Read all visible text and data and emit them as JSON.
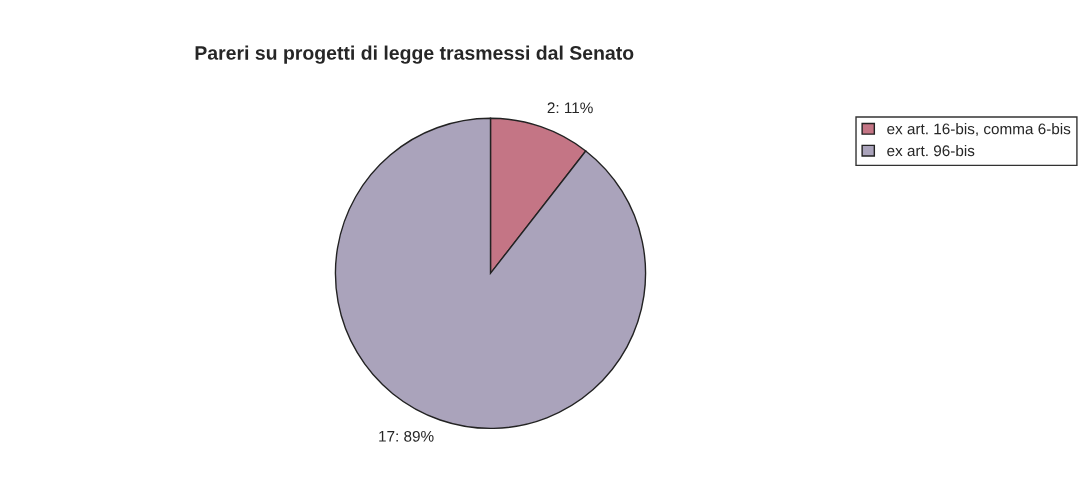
{
  "chart_data": {
    "type": "pie",
    "title": "Pareri su progetti di legge trasmessi dal Senato",
    "categories": [
      "ex art. 16-bis, comma 6-bis",
      "ex art. 96-bis"
    ],
    "values": [
      2,
      17
    ],
    "value_labels": [
      "2: 11%",
      "17: 89%"
    ],
    "colors": [
      "#c47585",
      "#aaa3bb"
    ],
    "legend": "top right"
  }
}
